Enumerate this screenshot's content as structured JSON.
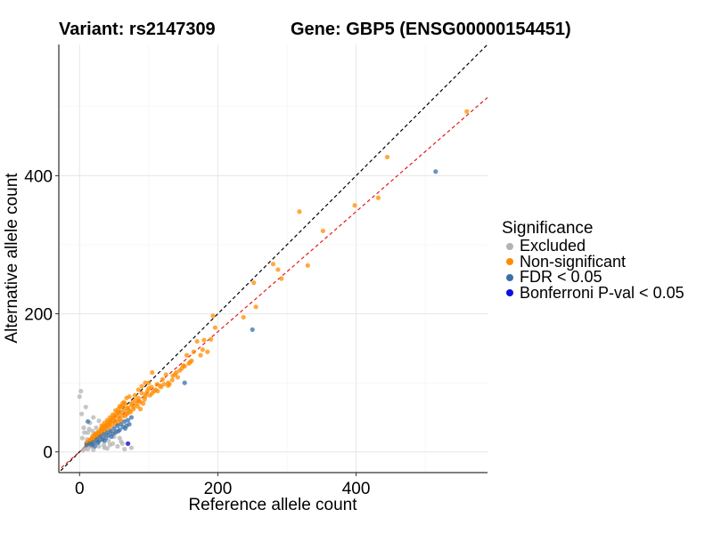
{
  "chart_data": {
    "type": "scatter",
    "title_left": "Variant: rs2147309",
    "title_right": "Gene: GBP5 (ENSG00000154451)",
    "xlabel": "Reference allele count",
    "ylabel": "Alternative allele count",
    "xlim": [
      -30,
      590
    ],
    "ylim": [
      -30,
      590
    ],
    "xticks": [
      0,
      200,
      400
    ],
    "yticks": [
      0,
      200,
      400
    ],
    "grid": true,
    "legend_title": "Significance",
    "legend_position": "right",
    "ref_lines": [
      {
        "name": "y = x",
        "slope": 1.0,
        "color": "#000000",
        "dash": "dashed"
      },
      {
        "name": "fit",
        "slope": 0.87,
        "color": "#e41a1c",
        "dash": "dashed"
      }
    ],
    "series": [
      {
        "name": "Excluded",
        "color": "#b3b3b3",
        "points": [
          [
            0,
            80
          ],
          [
            5,
            2
          ],
          [
            8,
            5
          ],
          [
            10,
            12
          ],
          [
            12,
            4
          ],
          [
            15,
            9
          ],
          [
            18,
            20
          ],
          [
            20,
            3
          ],
          [
            22,
            14
          ],
          [
            25,
            27
          ],
          [
            28,
            8
          ],
          [
            30,
            18
          ],
          [
            32,
            35
          ],
          [
            35,
            10
          ],
          [
            38,
            25
          ],
          [
            40,
            5
          ],
          [
            42,
            16
          ],
          [
            45,
            30
          ],
          [
            48,
            12
          ],
          [
            50,
            22
          ],
          [
            55,
            8
          ],
          [
            60,
            15
          ],
          [
            65,
            4
          ],
          [
            70,
            12
          ],
          [
            3,
            55
          ],
          [
            2,
            88
          ],
          [
            6,
            35
          ],
          [
            9,
            65
          ],
          [
            15,
            42
          ],
          [
            20,
            50
          ],
          [
            24,
            35
          ],
          [
            28,
            45
          ],
          [
            12,
            28
          ],
          [
            16,
            8
          ],
          [
            19,
            30
          ],
          [
            33,
            20
          ],
          [
            36,
            6
          ],
          [
            44,
            10
          ],
          [
            52,
            30
          ],
          [
            58,
            20
          ],
          [
            62,
            12
          ],
          [
            75,
            6
          ],
          [
            4,
            20
          ],
          [
            7,
            28
          ],
          [
            11,
            18
          ],
          [
            14,
            33
          ],
          [
            17,
            12
          ],
          [
            21,
            24
          ],
          [
            26,
            17
          ],
          [
            31,
            28
          ]
        ]
      },
      {
        "name": "Non-significant",
        "color": "#ff8c00",
        "points": [
          [
            560,
            493
          ],
          [
            445,
            427
          ],
          [
            432,
            368
          ],
          [
            398,
            357
          ],
          [
            352,
            320
          ],
          [
            318,
            348
          ],
          [
            330,
            270
          ],
          [
            292,
            251
          ],
          [
            280,
            272
          ],
          [
            287,
            264
          ],
          [
            252,
            245
          ],
          [
            255,
            210
          ],
          [
            237,
            195
          ],
          [
            193,
            197
          ],
          [
            196,
            180
          ],
          [
            190,
            163
          ],
          [
            180,
            162
          ],
          [
            170,
            160
          ],
          [
            185,
            145
          ],
          [
            165,
            145
          ],
          [
            155,
            140
          ],
          [
            160,
            130
          ],
          [
            148,
            121
          ],
          [
            142,
            108
          ],
          [
            135,
            110
          ],
          [
            128,
            100
          ],
          [
            120,
            105
          ],
          [
            112,
            98
          ],
          [
            105,
            85
          ],
          [
            100,
            92
          ],
          [
            95,
            80
          ],
          [
            90,
            85
          ],
          [
            88,
            72
          ],
          [
            85,
            78
          ],
          [
            82,
            70
          ],
          [
            80,
            75
          ],
          [
            78,
            65
          ],
          [
            75,
            68
          ],
          [
            72,
            60
          ],
          [
            70,
            64
          ],
          [
            68,
            55
          ],
          [
            65,
            60
          ],
          [
            62,
            52
          ],
          [
            60,
            58
          ],
          [
            58,
            48
          ],
          [
            55,
            52
          ],
          [
            52,
            45
          ],
          [
            50,
            48
          ],
          [
            48,
            40
          ],
          [
            46,
            44
          ],
          [
            44,
            36
          ],
          [
            42,
            40
          ],
          [
            40,
            34
          ],
          [
            38,
            37
          ],
          [
            36,
            30
          ],
          [
            34,
            33
          ],
          [
            32,
            28
          ],
          [
            30,
            31
          ],
          [
            28,
            24
          ],
          [
            26,
            27
          ],
          [
            24,
            22
          ],
          [
            22,
            25
          ],
          [
            20,
            18
          ],
          [
            18,
            20
          ],
          [
            16,
            14
          ],
          [
            14,
            17
          ],
          [
            12,
            11
          ],
          [
            10,
            13
          ],
          [
            72,
            80
          ],
          [
            66,
            70
          ],
          [
            60,
            65
          ],
          [
            56,
            62
          ],
          [
            64,
            72
          ],
          [
            90,
            95
          ],
          [
            100,
            100
          ],
          [
            110,
            90
          ],
          [
            116,
            96
          ],
          [
            125,
            112
          ],
          [
            130,
            98
          ],
          [
            140,
            115
          ],
          [
            150,
            125
          ],
          [
            105,
            115
          ],
          [
            95,
            100
          ],
          [
            98,
            88
          ],
          [
            85,
            90
          ],
          [
            80,
            82
          ],
          [
            76,
            71
          ],
          [
            74,
            58
          ],
          [
            69,
            63
          ],
          [
            63,
            66
          ],
          [
            57,
            56
          ],
          [
            54,
            57
          ],
          [
            51,
            53
          ],
          [
            47,
            49
          ],
          [
            45,
            46
          ],
          [
            43,
            41
          ],
          [
            41,
            43
          ],
          [
            39,
            39
          ],
          [
            37,
            35
          ],
          [
            35,
            38
          ],
          [
            33,
            30
          ],
          [
            31,
            33
          ],
          [
            29,
            27
          ],
          [
            27,
            29
          ],
          [
            25,
            24
          ],
          [
            23,
            26
          ],
          [
            21,
            21
          ],
          [
            19,
            23
          ],
          [
            17,
            18
          ],
          [
            15,
            16
          ],
          [
            13,
            14
          ],
          [
            11,
            12
          ],
          [
            88,
            62
          ],
          [
            92,
            70
          ],
          [
            94,
            76
          ],
          [
            102,
            82
          ],
          [
            108,
            88
          ],
          [
            113,
            88
          ],
          [
            118,
            94
          ],
          [
            122,
            98
          ],
          [
            128,
            96
          ],
          [
            134,
            104
          ],
          [
            138,
            112
          ],
          [
            145,
            118
          ],
          [
            152,
            124
          ],
          [
            158,
            128
          ],
          [
            162,
            132
          ],
          [
            175,
            140
          ],
          [
            178,
            148
          ],
          [
            60,
            45
          ],
          [
            56,
            44
          ],
          [
            53,
            40
          ],
          [
            66,
            52
          ],
          [
            70,
            56
          ],
          [
            78,
            62
          ],
          [
            84,
            66
          ],
          [
            86,
            74
          ],
          [
            96,
            84
          ],
          [
            104,
            94
          ],
          [
            40,
            46
          ],
          [
            36,
            42
          ],
          [
            32,
            38
          ],
          [
            44,
            50
          ],
          [
            48,
            54
          ],
          [
            52,
            60
          ],
          [
            58,
            66
          ],
          [
            62,
            70
          ],
          [
            68,
            78
          ]
        ]
      },
      {
        "name": "FDR < 0.05",
        "color": "#3a70a8",
        "points": [
          [
            515,
            406
          ],
          [
            250,
            177
          ],
          [
            152,
            100
          ],
          [
            10,
            10
          ],
          [
            15,
            12
          ],
          [
            20,
            14
          ],
          [
            25,
            18
          ],
          [
            30,
            22
          ],
          [
            35,
            25
          ],
          [
            40,
            28
          ],
          [
            45,
            30
          ],
          [
            50,
            34
          ],
          [
            55,
            38
          ],
          [
            60,
            40
          ],
          [
            65,
            44
          ],
          [
            70,
            46
          ],
          [
            75,
            50
          ],
          [
            22,
            8
          ],
          [
            28,
            15
          ],
          [
            33,
            18
          ],
          [
            38,
            20
          ],
          [
            42,
            24
          ],
          [
            48,
            26
          ],
          [
            52,
            28
          ],
          [
            58,
            32
          ],
          [
            63,
            36
          ],
          [
            68,
            38
          ],
          [
            72,
            40
          ],
          [
            18,
            10
          ],
          [
            26,
            13
          ],
          [
            36,
            16
          ],
          [
            46,
            22
          ],
          [
            56,
            30
          ],
          [
            66,
            34
          ],
          [
            12,
            44
          ]
        ]
      },
      {
        "name": "Bonferroni P-val < 0.05",
        "color": "#1010e0",
        "points": [
          [
            70,
            12
          ]
        ]
      }
    ]
  }
}
